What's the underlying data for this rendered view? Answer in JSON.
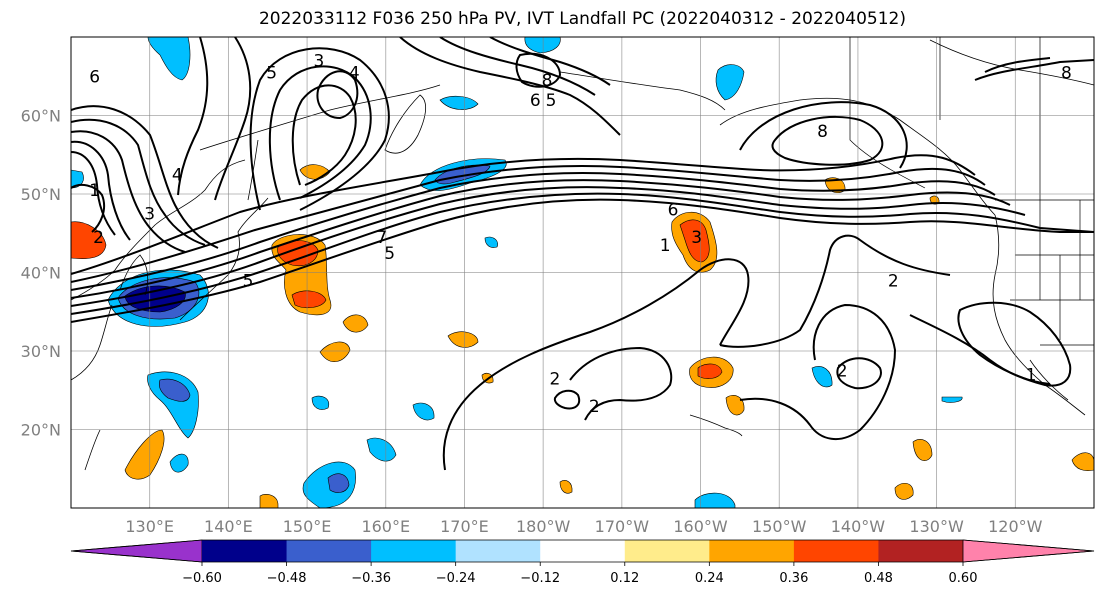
{
  "title": "2022033112 F036 250 hPa PV, IVT Landfall PC (2022040312 - 2022040512)",
  "map": {
    "lon_range": [
      120,
      250
    ],
    "lat_range": [
      10,
      70
    ],
    "lon_ticks": [
      {
        "lon": 130,
        "label": "130°E"
      },
      {
        "lon": 140,
        "label": "140°E"
      },
      {
        "lon": 150,
        "label": "150°E"
      },
      {
        "lon": 160,
        "label": "160°E"
      },
      {
        "lon": 170,
        "label": "170°E"
      },
      {
        "lon": 180,
        "label": "180°W"
      },
      {
        "lon": 190,
        "label": "170°W"
      },
      {
        "lon": 200,
        "label": "160°W"
      },
      {
        "lon": 210,
        "label": "150°W"
      },
      {
        "lon": 220,
        "label": "140°W"
      },
      {
        "lon": 230,
        "label": "130°W"
      },
      {
        "lon": 240,
        "label": "120°W"
      }
    ],
    "lat_ticks": [
      {
        "lat": 60,
        "label": "60°N"
      },
      {
        "lat": 50,
        "label": "50°N"
      },
      {
        "lat": 40,
        "label": "40°N"
      },
      {
        "lat": 30,
        "label": "30°N"
      },
      {
        "lat": 20,
        "label": "20°N"
      }
    ],
    "gridlines": true,
    "contour_labels": [
      {
        "text": "6",
        "lon": 123,
        "lat": 65
      },
      {
        "text": "1",
        "lon": 123,
        "lat": 50.5
      },
      {
        "text": "2",
        "lon": 123.5,
        "lat": 44.5
      },
      {
        "text": "3",
        "lon": 130,
        "lat": 47.5
      },
      {
        "text": "4",
        "lon": 133.5,
        "lat": 52.5
      },
      {
        "text": "5",
        "lon": 142.5,
        "lat": 39
      },
      {
        "text": "5",
        "lon": 145.5,
        "lat": 65.5
      },
      {
        "text": "3",
        "lon": 151.5,
        "lat": 67
      },
      {
        "text": "4",
        "lon": 156,
        "lat": 65.5
      },
      {
        "text": "7",
        "lon": 159.5,
        "lat": 44.5
      },
      {
        "text": "5",
        "lon": 160.5,
        "lat": 42.5
      },
      {
        "text": "8",
        "lon": 180.5,
        "lat": 64.5
      },
      {
        "text": "6",
        "lon": 179,
        "lat": 62
      },
      {
        "text": "5",
        "lon": 181,
        "lat": 62
      },
      {
        "text": "6",
        "lon": 196.5,
        "lat": 48
      },
      {
        "text": "1",
        "lon": 195.5,
        "lat": 43.5
      },
      {
        "text": "3",
        "lon": 199.5,
        "lat": 44.5
      },
      {
        "text": "8",
        "lon": 215.5,
        "lat": 58
      },
      {
        "text": "2",
        "lon": 224.5,
        "lat": 39
      },
      {
        "text": "1",
        "lon": 242,
        "lat": 27
      },
      {
        "text": "2",
        "lon": 181.5,
        "lat": 26.5
      },
      {
        "text": "2",
        "lon": 186.5,
        "lat": 23
      },
      {
        "text": "2",
        "lon": 218,
        "lat": 27.5
      },
      {
        "text": "8",
        "lon": 246.5,
        "lat": 65.5
      }
    ],
    "contour_values": [
      "1",
      "2",
      "3",
      "4",
      "5",
      "6",
      "7",
      "8"
    ]
  },
  "colorbar": {
    "levels": [
      -0.6,
      -0.48,
      -0.36,
      -0.24,
      -0.12,
      0.12,
      0.24,
      0.36,
      0.48,
      0.6
    ],
    "tick_labels": [
      "−0.60",
      "−0.48",
      "−0.36",
      "−0.24",
      "−0.12",
      "0.12",
      "0.24",
      "0.36",
      "0.48",
      "0.60"
    ],
    "colors": [
      "#9932cc",
      "#00008b",
      "#3a5fcd",
      "#00bfff",
      "#b0e2ff",
      "#ffffff",
      "#ffec8b",
      "#ffa500",
      "#ff4500",
      "#b22222",
      "#ff82ab"
    ],
    "extend": "both"
  }
}
